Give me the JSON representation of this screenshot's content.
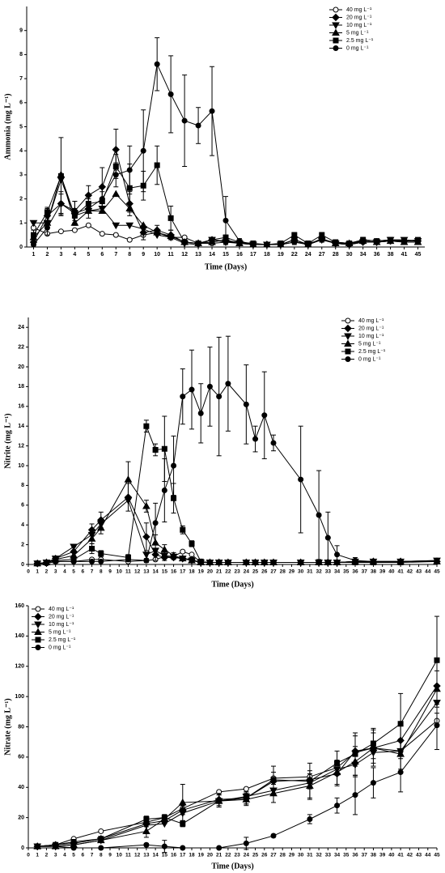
{
  "chart_data": [
    {
      "type": "line",
      "x_label": "Time (Days)",
      "y_label": "Ammonia (mg L⁻¹)",
      "legend": "upper right",
      "categories": [
        "1",
        "2",
        "3",
        "4",
        "5",
        "6",
        "7",
        "8",
        "9",
        "10",
        "11",
        "12",
        "13",
        "14",
        "15",
        "16",
        "17",
        "18",
        "19",
        "22",
        "24",
        "27",
        "28",
        "30",
        "34",
        "36",
        "38",
        "41",
        "45"
      ],
      "ylim": [
        0,
        10
      ],
      "yticks": [
        0,
        1,
        2,
        3,
        4,
        5,
        6,
        7,
        8,
        9
      ],
      "series": [
        {
          "name": "40 mg L⁻¹",
          "color": "#000000",
          "marker": "circle-open",
          "values": [
            0.8,
            0.55,
            0.65,
            0.7,
            0.9,
            0.55,
            0.5,
            0.3,
            0.5,
            0.6,
            0.4,
            0.4,
            0.15,
            0.15,
            0.2,
            0.2,
            0.1,
            0.1,
            0.1,
            0.2,
            0.1,
            0.3,
            0.15,
            0.1,
            0.2,
            0.2,
            0.25,
            0.2,
            0.2
          ]
        },
        {
          "name": "20 mg L⁻¹",
          "color": "#000000",
          "marker": "diamond",
          "values": [
            0.2,
            1.3,
            1.8,
            1.5,
            2.15,
            2.5,
            4.05,
            1.8,
            0.6,
            0.7,
            0.5,
            0.2,
            0.15,
            0.3,
            0.25,
            0.2,
            0.1,
            0.1,
            0.1,
            0.3,
            0.1,
            0.35,
            0.15,
            0.1,
            0.25,
            0.2,
            0.25,
            0.25,
            0.25
          ],
          "errors": [
            0.1,
            0.3,
            0.4,
            0.4,
            0.4,
            0.8,
            0.85,
            0.5,
            0.3,
            0.2,
            0.2,
            0.1,
            0.05,
            0.1,
            0.1,
            0.1,
            0.05,
            0.05,
            0.05,
            0.1,
            0.05,
            0.1,
            0.1,
            0.05,
            0.1,
            0.05,
            0.1,
            0.05,
            0.05
          ]
        },
        {
          "name": "10 mg L⁻¹",
          "color": "#000000",
          "marker": "triangle-down",
          "values": [
            1.0,
            1.0,
            2.8,
            1.3,
            1.5,
            1.6,
            0.9,
            0.9,
            0.75,
            0.5,
            0.4,
            0.15,
            0.1,
            0.3,
            0.2,
            0.15,
            0.1,
            0.1,
            0.1,
            0.3,
            0.1,
            0.3,
            0.15,
            0.1,
            0.2,
            0.2,
            0.3,
            0.3,
            0.25
          ]
        },
        {
          "name": "5 mg L⁻¹",
          "color": "#000000",
          "marker": "triangle-up",
          "values": [
            0.4,
            1.0,
            3.0,
            1.0,
            1.5,
            1.5,
            2.2,
            1.6,
            0.9,
            0.6,
            0.45,
            0.2,
            0.15,
            0.2,
            0.3,
            0.15,
            0.1,
            0.1,
            0.1,
            0.3,
            0.1,
            0.35,
            0.15,
            0.15,
            0.25,
            0.2,
            0.25,
            0.2,
            0.2
          ]
        },
        {
          "name": "2.5 mg L⁻¹",
          "color": "#000000",
          "marker": "square",
          "values": [
            0.5,
            1.45,
            2.95,
            1.3,
            1.8,
            1.9,
            3.35,
            2.45,
            2.55,
            3.4,
            1.2,
            0.2,
            0.15,
            0.3,
            0.4,
            0.2,
            0.15,
            0.1,
            0.15,
            0.5,
            0.15,
            0.5,
            0.2,
            0.15,
            0.3,
            0.25,
            0.3,
            0.25,
            0.3
          ],
          "errors": [
            0.2,
            0.2,
            1.6,
            0.3,
            0.3,
            0.4,
            0.5,
            1.0,
            0.6,
            0.8,
            0.5,
            0.1,
            0.05,
            0.1,
            0.1,
            0.05,
            0.05,
            0.05,
            0.05,
            0.1,
            0.05,
            0.1,
            0.1,
            0.05,
            0.1,
            0.05,
            0.1,
            0.05,
            0.05
          ]
        },
        {
          "name": "0 mg L⁻¹",
          "color": "#000000",
          "marker": "circle",
          "values": [
            0.1,
            0.8,
            1.8,
            1.4,
            1.6,
            2.0,
            3.0,
            3.2,
            4.0,
            7.6,
            6.35,
            5.25,
            5.05,
            5.65,
            1.1,
            0.25,
            0.1,
            0.1,
            0.1,
            0.2,
            0.15,
            0.3,
            0.2,
            0.15,
            0.3,
            0.25,
            0.3,
            0.25,
            0.25
          ],
          "errors": [
            0.1,
            0.3,
            0.5,
            0.5,
            0.4,
            0.5,
            0.5,
            1.0,
            1.7,
            1.1,
            1.6,
            1.9,
            0.75,
            1.85,
            1.0,
            0.1,
            0.05,
            0.05,
            0.05,
            0.1,
            0.05,
            0.1,
            0.1,
            0.05,
            0.1,
            0.05,
            0.1,
            0.05,
            0.05
          ]
        }
      ]
    },
    {
      "type": "line",
      "x_label": "Time (Days)",
      "y_label": "Nitrite (mg L⁻¹)",
      "legend": "upper right",
      "x": [
        1,
        2,
        3,
        5,
        7,
        8,
        11,
        13,
        14,
        15,
        16,
        17,
        18,
        19,
        20,
        21,
        22,
        24,
        25,
        26,
        27,
        30,
        32,
        33,
        34,
        36,
        38,
        41,
        45
      ],
      "xlim": [
        0,
        45
      ],
      "xticks": [
        0,
        1,
        2,
        3,
        4,
        5,
        6,
        7,
        8,
        9,
        10,
        11,
        12,
        13,
        14,
        15,
        16,
        17,
        18,
        19,
        20,
        21,
        22,
        23,
        24,
        25,
        26,
        27,
        28,
        29,
        30,
        31,
        32,
        33,
        34,
        35,
        36,
        37,
        38,
        39,
        40,
        41,
        42,
        43,
        44,
        45
      ],
      "ylim": [
        0,
        25
      ],
      "yticks": [
        0,
        2,
        4,
        6,
        8,
        10,
        12,
        14,
        16,
        18,
        20,
        22,
        24
      ],
      "series": [
        {
          "name": "40 mg L⁻¹",
          "color": "#000000",
          "marker": "circle-open",
          "values": [
            0.1,
            0.1,
            0.3,
            0.3,
            0.5,
            0.5,
            0.3,
            0.4,
            0.5,
            0.8,
            0.8,
            1.3,
            1.0,
            0.2,
            0.2,
            0.2,
            0.2,
            0.2,
            0.2,
            0.2,
            0.2,
            0.2,
            0.2,
            0.2,
            0.2,
            0.3,
            0.3,
            0.3,
            0.3
          ]
        },
        {
          "name": "20 mg L⁻¹",
          "color": "#000000",
          "marker": "diamond",
          "values": [
            0.1,
            0.2,
            0.6,
            1.3,
            3.5,
            4.5,
            6.8,
            2.8,
            1.0,
            0.7,
            0.7,
            0.6,
            0.5,
            0.2,
            0.2,
            0.2,
            0.2,
            0.2,
            0.2,
            0.2,
            0.2,
            0.2,
            0.2,
            0.2,
            0.2,
            0.3,
            0.3,
            0.3,
            0.3
          ],
          "errors": [
            0.05,
            0.1,
            0.2,
            0.5,
            0.6,
            0.8,
            1.4,
            1.4,
            0.6,
            0.3,
            0.2,
            0.2,
            0.2,
            0.1,
            0.05,
            0.05,
            0.05,
            0.05,
            0.05,
            0.05,
            0.05,
            0.05,
            0.05,
            0.05,
            0.05,
            0.1,
            0.1,
            0.1,
            0.1
          ]
        },
        {
          "name": "10 mg L⁻¹",
          "color": "#000000",
          "marker": "triangle-down",
          "values": [
            0.1,
            0.2,
            0.6,
            1.8,
            3.0,
            4.1,
            6.5,
            1.0,
            1.4,
            0.9,
            0.8,
            0.6,
            0.4,
            0.2,
            0.2,
            0.2,
            0.2,
            0.2,
            0.2,
            0.2,
            0.2,
            0.2,
            0.2,
            0.2,
            0.2,
            0.3,
            0.3,
            0.3,
            0.4
          ]
        },
        {
          "name": "5 mg L⁻¹",
          "color": "#000000",
          "marker": "triangle-up",
          "values": [
            0.1,
            0.2,
            0.5,
            0.9,
            2.6,
            3.7,
            8.6,
            5.9,
            2.2,
            1.5,
            0.9,
            0.6,
            0.4,
            0.2,
            0.2,
            0.2,
            0.2,
            0.2,
            0.2,
            0.2,
            0.2,
            0.2,
            0.2,
            0.2,
            0.2,
            0.3,
            0.3,
            0.3,
            0.3
          ],
          "errors": [
            0.05,
            0.1,
            0.2,
            0.3,
            0.5,
            0.6,
            1.8,
            0.6,
            0.8,
            0.5,
            0.3,
            0.2,
            0.1,
            0.1,
            0.05,
            0.05,
            0.05,
            0.05,
            0.05,
            0.05,
            0.05,
            0.05,
            0.05,
            0.05,
            0.05,
            0.1,
            0.1,
            0.1,
            0.1
          ]
        },
        {
          "name": "2.5 mg L⁻¹",
          "color": "#000000",
          "marker": "square",
          "values": [
            0.1,
            0.2,
            0.4,
            0.5,
            1.6,
            1.1,
            0.7,
            14.0,
            11.6,
            11.7,
            6.7,
            3.5,
            2.1,
            0.3,
            0.2,
            0.2,
            0.2,
            0.2,
            0.2,
            0.2,
            0.2,
            0.2,
            0.2,
            0.2,
            0.2,
            0.2,
            0.2,
            0.2,
            0.3
          ],
          "errors": [
            0.05,
            0.1,
            0.1,
            0.2,
            0.5,
            0.3,
            0.3,
            0.6,
            0.6,
            3.3,
            1.5,
            0.4,
            0.3,
            0.1,
            0.05,
            0.05,
            0.05,
            0.05,
            0.05,
            0.05,
            0.05,
            0.05,
            0.05,
            0.05,
            0.05,
            0.05,
            0.05,
            0.05,
            0.1
          ]
        },
        {
          "name": "0 mg L⁻¹",
          "color": "#000000",
          "marker": "circle",
          "values": [
            0.1,
            0.1,
            0.3,
            0.3,
            0.3,
            0.3,
            0.5,
            0.4,
            4.2,
            7.5,
            10.0,
            17.0,
            17.7,
            15.3,
            18.0,
            17.0,
            18.3,
            16.2,
            12.7,
            15.1,
            12.3,
            8.6,
            5.0,
            2.7,
            1.0,
            0.4,
            0.3,
            0.3,
            0.4
          ],
          "errors": [
            0.05,
            0.1,
            0.1,
            0.1,
            0.1,
            0.1,
            0.2,
            0.2,
            2.0,
            3.2,
            3.0,
            2.8,
            4.0,
            3.0,
            4.0,
            6.0,
            4.8,
            4.0,
            1.3,
            4.4,
            0.8,
            5.4,
            4.5,
            2.6,
            0.9,
            0.3,
            0.1,
            0.1,
            0.1
          ]
        }
      ]
    },
    {
      "type": "line",
      "x_label": "Time (Days)",
      "y_label": "Nitrate (mg L⁻¹)",
      "legend": "upper left",
      "x": [
        1,
        3,
        5,
        8,
        13,
        15,
        17,
        21,
        24,
        27,
        31,
        34,
        36,
        38,
        41,
        45
      ],
      "xlim": [
        0,
        45
      ],
      "xticks": [
        0,
        1,
        2,
        3,
        4,
        5,
        6,
        7,
        8,
        9,
        10,
        11,
        12,
        13,
        14,
        15,
        16,
        17,
        18,
        19,
        20,
        21,
        22,
        23,
        24,
        25,
        26,
        27,
        28,
        29,
        30,
        31,
        32,
        33,
        34,
        35,
        36,
        37,
        38,
        39,
        40,
        41,
        42,
        43,
        44,
        45
      ],
      "ylim": [
        0,
        160
      ],
      "yticks": [
        0,
        20,
        40,
        60,
        80,
        100,
        120,
        140,
        160
      ],
      "series": [
        {
          "name": "40 mg L⁻¹",
          "color": "#000000",
          "marker": "circle-open",
          "values": [
            1,
            2,
            6,
            11,
            17,
            20,
            26,
            37,
            39,
            46,
            47,
            53,
            63,
            66,
            64,
            84
          ]
        },
        {
          "name": "20 mg L⁻¹",
          "color": "#000000",
          "marker": "diamond",
          "values": [
            1,
            2,
            3,
            6,
            16,
            18,
            25,
            32,
            33,
            44,
            45,
            49,
            64,
            66,
            71,
            107
          ],
          "errors": [
            0.5,
            1,
            1,
            1,
            2,
            2,
            3,
            4,
            4,
            6,
            6,
            8,
            10,
            10,
            12,
            18
          ]
        },
        {
          "name": "10 mg L⁻¹",
          "color": "#000000",
          "marker": "triangle-down",
          "values": [
            1,
            1,
            2,
            5,
            15,
            16,
            23,
            31,
            34,
            38,
            43,
            52,
            55,
            63,
            64,
            96
          ]
        },
        {
          "name": "5 mg L⁻¹",
          "color": "#000000",
          "marker": "triangle-up",
          "values": [
            1,
            1,
            2,
            5,
            11,
            19,
            30,
            31,
            32,
            36,
            41,
            50,
            57,
            66,
            62,
            105
          ],
          "errors": [
            0.5,
            1,
            1,
            1,
            4,
            3,
            12,
            4,
            4,
            6,
            8,
            8,
            10,
            12,
            10,
            12
          ]
        },
        {
          "name": "2.5 mg L⁻¹",
          "color": "#000000",
          "marker": "square",
          "values": [
            1,
            2,
            4,
            6,
            19,
            20,
            16,
            31,
            33,
            45,
            44,
            56,
            62,
            69,
            82,
            124
          ],
          "errors": [
            0.5,
            1,
            1,
            1,
            2,
            2,
            2,
            4,
            4,
            9,
            12,
            8,
            14,
            10,
            20,
            29
          ]
        },
        {
          "name": "0 mg L⁻¹",
          "color": "#000000",
          "marker": "circle",
          "values": [
            1,
            1,
            0,
            0,
            2,
            1,
            0,
            0,
            3,
            8,
            19,
            28,
            35,
            43,
            50,
            81
          ],
          "errors": [
            0.5,
            0.5,
            0.5,
            0.5,
            1,
            4,
            0.5,
            0.5,
            4,
            1,
            3,
            5,
            13,
            10,
            13,
            16
          ]
        }
      ]
    }
  ]
}
